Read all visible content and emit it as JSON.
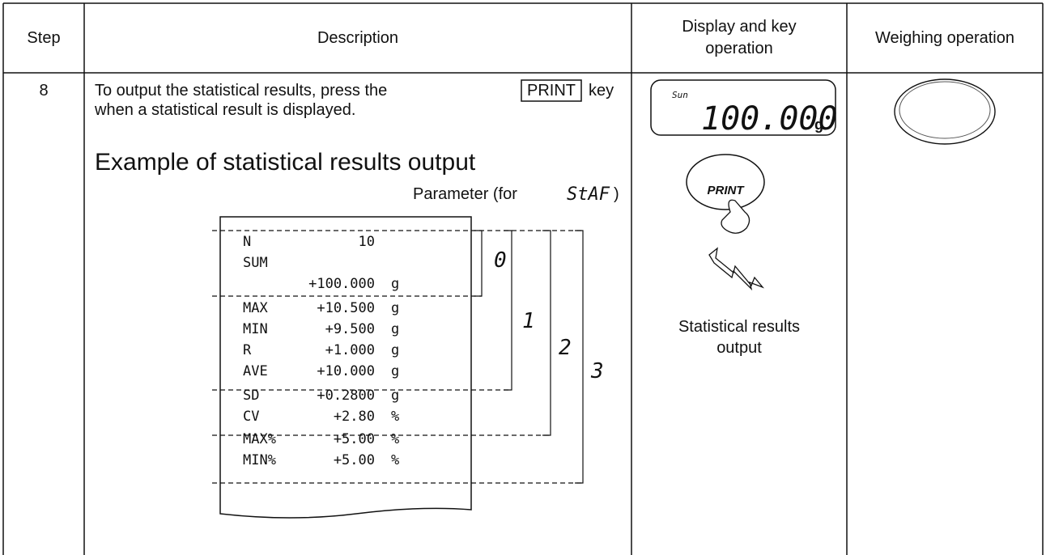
{
  "header": {
    "step": "Step",
    "description": "Description",
    "display": [
      "Display and key",
      "operation"
    ],
    "weighing": "Weighing operation"
  },
  "row": {
    "step": "8",
    "description": {
      "line1": "To output the statistical results, press the",
      "key": "PRINT",
      "line1_end": "key",
      "line2": "when a statistical result is displayed."
    },
    "example_title": "Example of statistical results output",
    "parameter": {
      "label": "Parameter (for",
      "setting": "StAF",
      "close": ")"
    },
    "printout": [
      [
        "N",
        "10",
        ""
      ],
      [
        "SUM",
        "",
        ""
      ],
      [
        "",
        "+100.000",
        "g"
      ],
      [
        "MAX",
        "+10.500",
        "g"
      ],
      [
        "MIN",
        "+9.500",
        "g"
      ],
      [
        "R",
        "+1.000",
        "g"
      ],
      [
        "AVE",
        "+10.000",
        "g"
      ],
      [
        "SD",
        "+0.2800",
        "g"
      ],
      [
        "CV",
        "+2.80",
        "%"
      ],
      [
        "MAX%",
        "+5.00",
        "%"
      ],
      [
        "MIN%",
        "+5.00",
        "%"
      ]
    ],
    "brackets": [
      "0",
      "1",
      "2",
      "3"
    ],
    "display": {
      "mode": "Sun",
      "value": "100.000",
      "unit": "g",
      "key": "PRINT",
      "caption": [
        "Statistical results",
        "output"
      ]
    }
  }
}
